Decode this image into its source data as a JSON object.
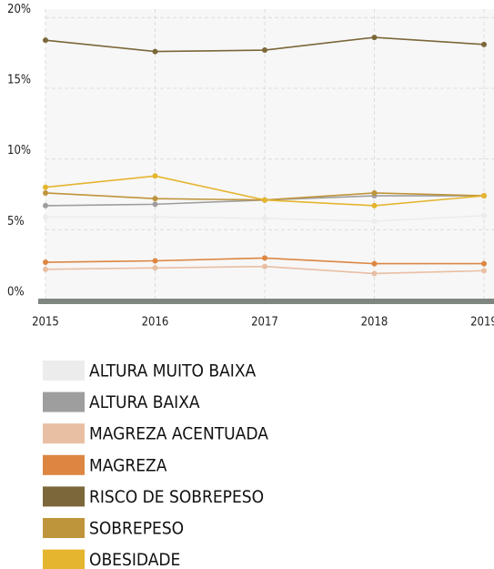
{
  "chart_data": {
    "type": "line",
    "categories": [
      "2015",
      "2016",
      "2017",
      "2018",
      "2019"
    ],
    "ylim": [
      0,
      20.6
    ],
    "yticks": [
      {
        "value": 0,
        "label": "0%"
      },
      {
        "value": 5,
        "label": "5%"
      },
      {
        "value": 10,
        "label": "10%"
      },
      {
        "value": 15,
        "label": "15%"
      },
      {
        "value": 20,
        "label": "20%"
      }
    ],
    "grid": true,
    "series": [
      {
        "name": "ALTURA MUITO BAIXA",
        "color": "#ececec",
        "values": [
          5.9,
          5.9,
          5.8,
          5.6,
          6.0
        ]
      },
      {
        "name": "ALTURA BAIXA",
        "color": "#9e9e9e",
        "values": [
          6.7,
          6.8,
          7.1,
          7.4,
          7.4
        ]
      },
      {
        "name": "MAGREZA ACENTUADA",
        "color": "#e8bfa3",
        "values": [
          2.2,
          2.3,
          2.4,
          1.9,
          2.1
        ]
      },
      {
        "name": "MAGREZA",
        "color": "#dc8642",
        "values": [
          2.7,
          2.8,
          3.0,
          2.6,
          2.6
        ]
      },
      {
        "name": "RISCO DE SOBREPESO",
        "color": "#7b6739",
        "values": [
          18.4,
          17.6,
          17.7,
          18.6,
          18.1
        ]
      },
      {
        "name": "SOBREPESO",
        "color": "#bf953b",
        "values": [
          7.6,
          7.2,
          7.1,
          7.6,
          7.4
        ]
      },
      {
        "name": "OBESIDADE",
        "color": "#e5b52f",
        "values": [
          8.0,
          8.8,
          7.1,
          6.7,
          7.4
        ]
      }
    ]
  }
}
